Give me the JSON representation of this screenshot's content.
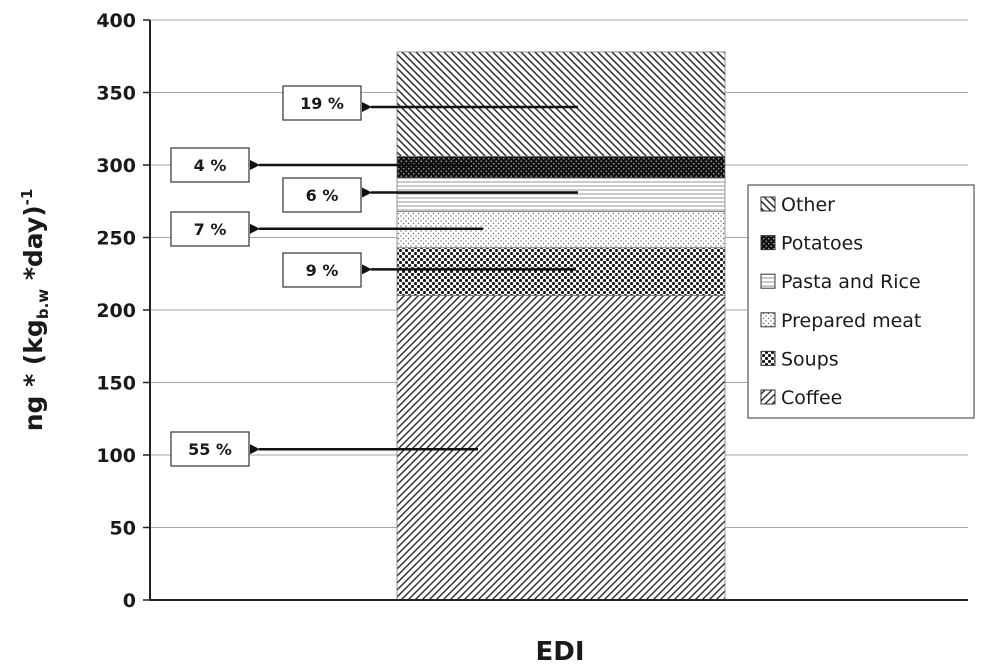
{
  "chart_data": {
    "type": "bar",
    "stacked": true,
    "categories": [
      "EDI"
    ],
    "xlabel": "EDI",
    "ylabel": {
      "prefix": "ng * (kg",
      "subscript": "b.w",
      "middle": " *day)",
      "superscript": "-1"
    },
    "ylim": [
      0,
      400
    ],
    "yticks": [
      0,
      50,
      100,
      150,
      200,
      250,
      300,
      350,
      400
    ],
    "grid": true,
    "legend_position": "right",
    "series": [
      {
        "name": "Coffee",
        "values": [
          210
        ],
        "pattern": "diag-up",
        "percent_label": "55 %"
      },
      {
        "name": "Soups",
        "values": [
          33
        ],
        "pattern": "dots-dense",
        "percent_label": "9 %"
      },
      {
        "name": "Prepared meat",
        "values": [
          25
        ],
        "pattern": "dots-light",
        "percent_label": "7 %"
      },
      {
        "name": "Pasta and Rice",
        "values": [
          23
        ],
        "pattern": "horizontal",
        "percent_label": "6 %"
      },
      {
        "name": "Potatoes",
        "values": [
          15
        ],
        "pattern": "dark-dots",
        "percent_label": "4 %"
      },
      {
        "name": "Other",
        "values": [
          72
        ],
        "pattern": "diag-down",
        "percent_label": "19 %"
      }
    ],
    "legend_order": [
      "Other",
      "Potatoes",
      "Pasta and Rice",
      "Prepared meat",
      "Soups",
      "Coffee"
    ]
  }
}
